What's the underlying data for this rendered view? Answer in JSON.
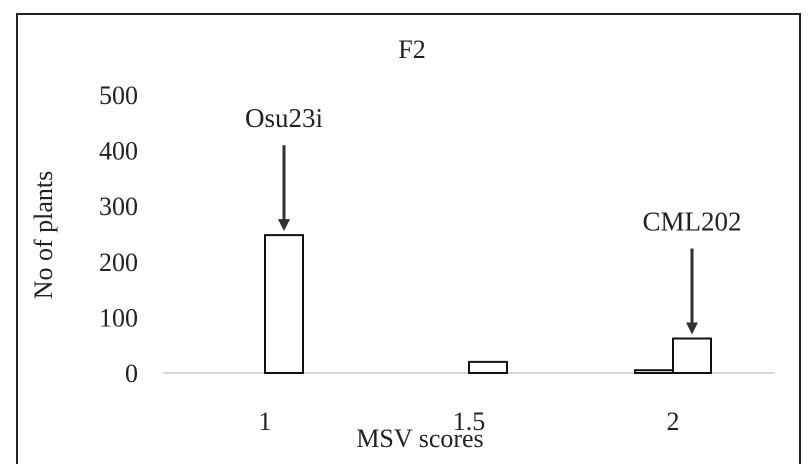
{
  "chart_data": {
    "type": "bar",
    "title": "F2",
    "xlabel": "MSV scores",
    "ylabel": "No of plants",
    "categories": [
      "1",
      "1.5",
      "2"
    ],
    "series": [
      {
        "values": [
          0,
          0,
          5
        ]
      },
      {
        "values": [
          248,
          20,
          62
        ]
      }
    ],
    "ylim": [
      0,
      500
    ],
    "yticks": [
      0,
      100,
      200,
      300,
      400,
      500
    ],
    "grid": false,
    "annotations": [
      {
        "text": "Osu23i",
        "category": "1",
        "series": 1,
        "value": 248
      },
      {
        "text": "CML202",
        "category": "2",
        "series": 1,
        "value": 62
      }
    ],
    "colors": {
      "bar_fill": "#ffffff",
      "bar_stroke": "#111111",
      "arrow": "#333333"
    }
  }
}
